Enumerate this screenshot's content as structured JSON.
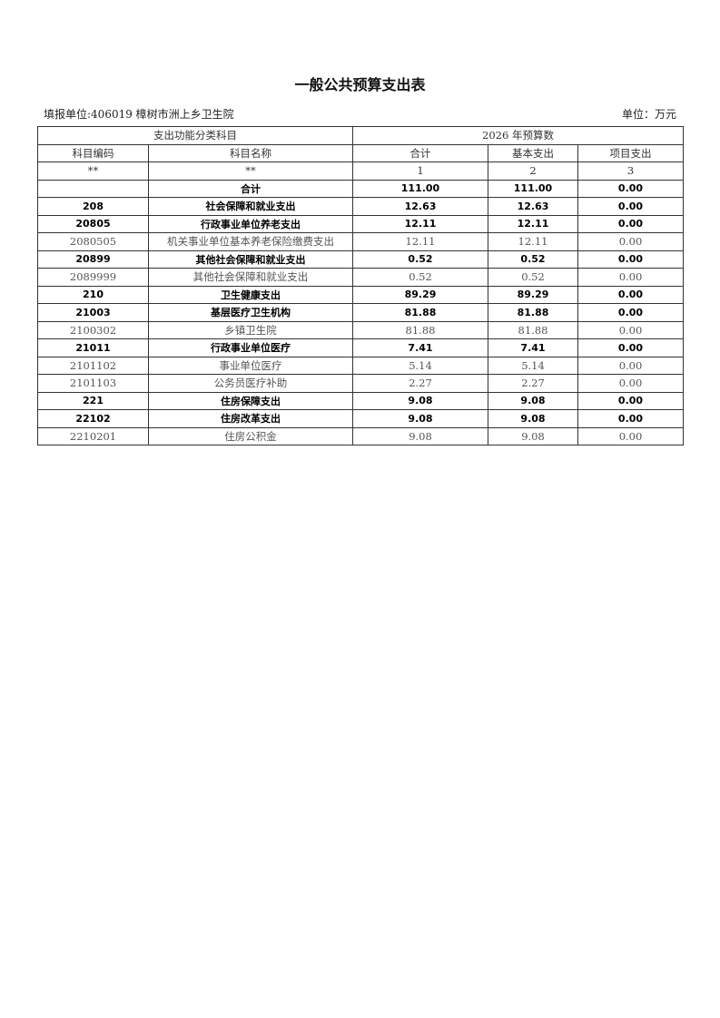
{
  "title": "一般公共预算支出表",
  "unit_label": "填报单位:406019 樟树市洲上乡卫生院",
  "currency_unit": "单位：万元",
  "header": {
    "group_left": "支出功能分类科目",
    "group_right": "2026 年预算数",
    "columns": [
      "科目编码",
      "科目名称",
      "合计",
      "基本支出",
      "项目支出"
    ],
    "index_row": [
      "**",
      "**",
      "1",
      "2",
      "3"
    ]
  },
  "rows": [
    {
      "code": "",
      "name": "合计",
      "total": "111.00",
      "basic": "111.00",
      "project": "0.00",
      "bold": true
    },
    {
      "code": "208",
      "name": "社会保障和就业支出",
      "total": "12.63",
      "basic": "12.63",
      "project": "0.00",
      "bold": true
    },
    {
      "code": "20805",
      "name": "行政事业单位养老支出",
      "total": "12.11",
      "basic": "12.11",
      "project": "0.00",
      "bold": true
    },
    {
      "code": "2080505",
      "name": "机关事业单位基本养老保险缴费支出",
      "total": "12.11",
      "basic": "12.11",
      "project": "0.00",
      "bold": false
    },
    {
      "code": "20899",
      "name": "其他社会保障和就业支出",
      "total": "0.52",
      "basic": "0.52",
      "project": "0.00",
      "bold": true
    },
    {
      "code": "2089999",
      "name": "其他社会保障和就业支出",
      "total": "0.52",
      "basic": "0.52",
      "project": "0.00",
      "bold": false
    },
    {
      "code": "210",
      "name": "卫生健康支出",
      "total": "89.29",
      "basic": "89.29",
      "project": "0.00",
      "bold": true
    },
    {
      "code": "21003",
      "name": "基层医疗卫生机构",
      "total": "81.88",
      "basic": "81.88",
      "project": "0.00",
      "bold": true
    },
    {
      "code": "2100302",
      "name": "乡镇卫生院",
      "total": "81.88",
      "basic": "81.88",
      "project": "0.00",
      "bold": false
    },
    {
      "code": "21011",
      "name": "行政事业单位医疗",
      "total": "7.41",
      "basic": "7.41",
      "project": "0.00",
      "bold": true
    },
    {
      "code": "2101102",
      "name": "事业单位医疗",
      "total": "5.14",
      "basic": "5.14",
      "project": "0.00",
      "bold": false
    },
    {
      "code": "2101103",
      "name": "公务员医疗补助",
      "total": "2.27",
      "basic": "2.27",
      "project": "0.00",
      "bold": false
    },
    {
      "code": "221",
      "name": "住房保障支出",
      "total": "9.08",
      "basic": "9.08",
      "project": "0.00",
      "bold": true
    },
    {
      "code": "22102",
      "name": "住房改革支出",
      "total": "9.08",
      "basic": "9.08",
      "project": "0.00",
      "bold": true
    },
    {
      "code": "2210201",
      "name": "住房公积金",
      "total": "9.08",
      "basic": "9.08",
      "project": "0.00",
      "bold": false
    }
  ]
}
